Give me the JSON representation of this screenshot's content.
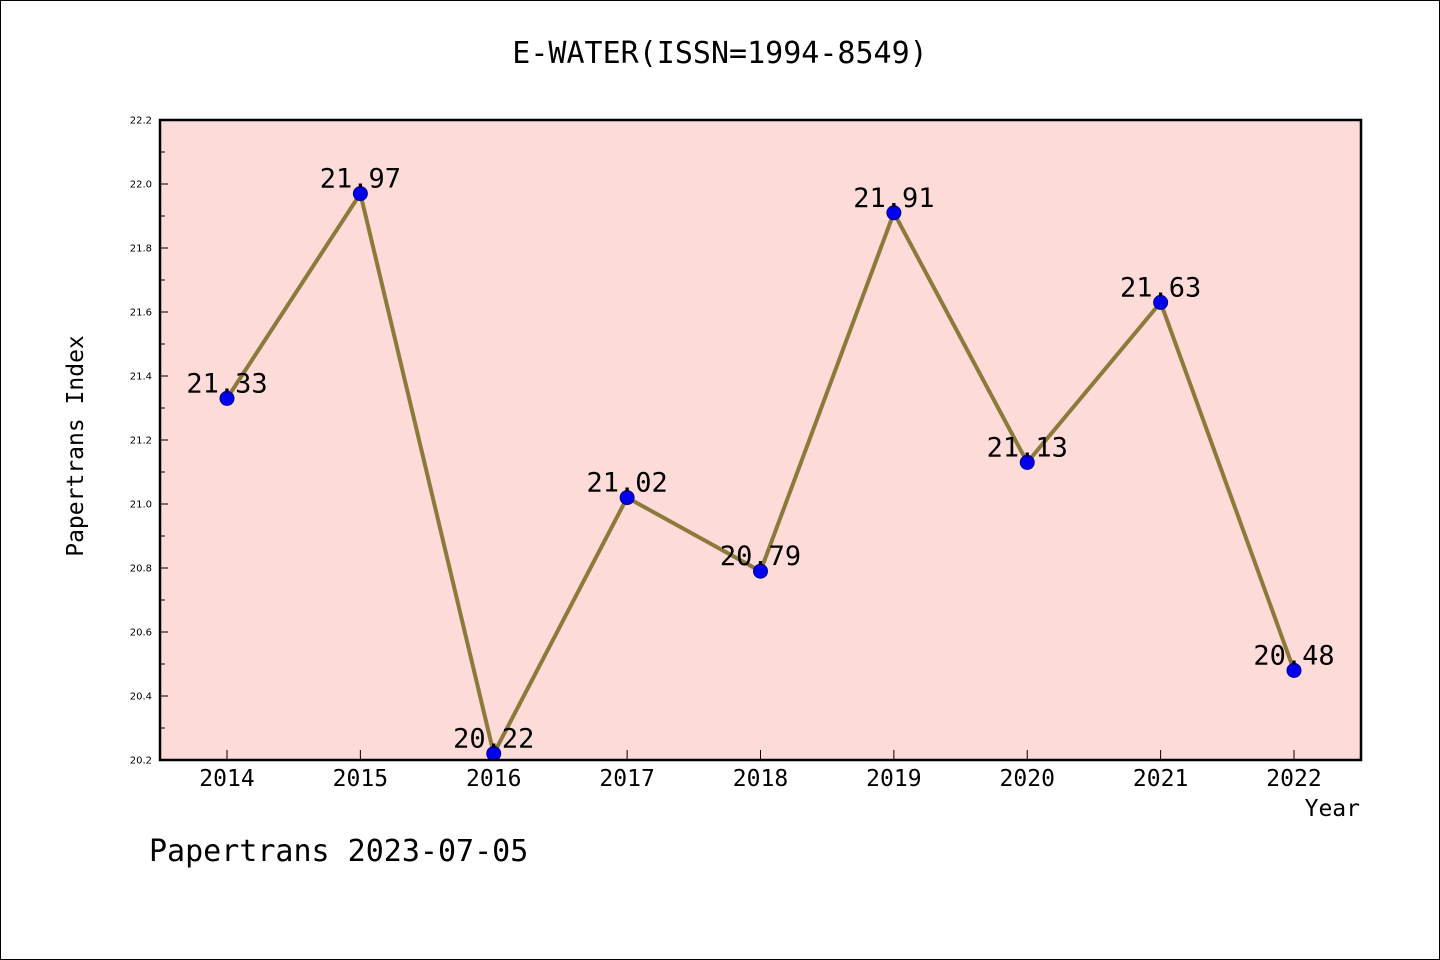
{
  "chart_data": {
    "type": "line",
    "title": "E-WATER(ISSN=1994-8549)",
    "xlabel": "Year",
    "ylabel": "Papertrans Index",
    "categories": [
      "2014",
      "2015",
      "2016",
      "2017",
      "2018",
      "2019",
      "2020",
      "2021",
      "2022"
    ],
    "values": [
      21.33,
      21.97,
      20.22,
      21.02,
      20.79,
      21.91,
      21.13,
      21.63,
      20.48
    ],
    "data_labels": [
      "21.33",
      "21.97",
      "20.22",
      "21.02",
      "20.79",
      "21.91",
      "21.13",
      "21.63",
      "20.48"
    ],
    "ylim": [
      20.2,
      22.2
    ],
    "yticks": [
      "20.2",
      "20.4",
      "20.6",
      "20.8",
      "21.0",
      "21.2",
      "21.4",
      "21.6",
      "21.8",
      "22.0",
      "22.2"
    ],
    "grid": false,
    "colors": {
      "plot_background": "#fddbd8",
      "line": "#8b7a3a",
      "marker": "#0000ee",
      "marker_edge": "#00008b"
    }
  },
  "footer": "Papertrans 2023-07-05"
}
